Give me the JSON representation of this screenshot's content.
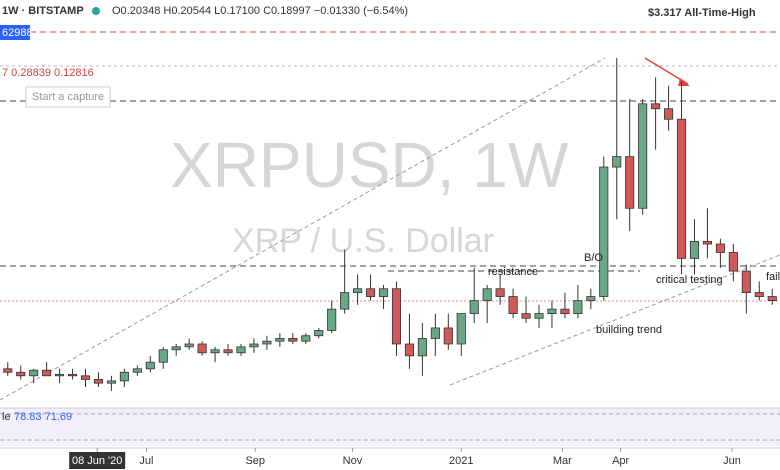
{
  "header": {
    "symbol": "1W · BITSTAMP",
    "ohlc": "O0.20348 H0.20544 L0.17100 C0.18997 −0.01330 (−6.54%)",
    "ath": "$3.317 All-Time-High",
    "capture": "Start a capture",
    "price_tag": "62988",
    "indicator_values": "7  0.28839  0.12816",
    "stoch_label": "le",
    "stoch_values": "78.83  71.69"
  },
  "watermark": {
    "symbol": "XRPUSD, 1W",
    "name": "XRP / U.S. Dollar"
  },
  "annotations": {
    "resistance": "resistance",
    "breakout": "B/O",
    "critical": "critical testing",
    "fail": "fail",
    "trend": "building trend"
  },
  "chart_data": {
    "type": "candlestick",
    "log": true,
    "ylim": [
      0.15,
      3.0
    ],
    "xlim": [
      -0.6,
      59.6
    ],
    "up_color": "#6aa784",
    "down_color": "#d05a5a",
    "open": [
      0.2,
      0.195,
      0.19,
      0.198,
      0.19,
      0.192,
      0.19,
      0.185,
      0.18,
      0.183,
      0.195,
      0.2,
      0.21,
      0.23,
      0.235,
      0.24,
      0.225,
      0.23,
      0.225,
      0.235,
      0.24,
      0.245,
      0.25,
      0.245,
      0.255,
      0.265,
      0.31,
      0.35,
      0.36,
      0.34,
      0.36,
      0.24,
      0.22,
      0.25,
      0.27,
      0.24,
      0.3,
      0.33,
      0.36,
      0.34,
      0.3,
      0.29,
      0.3,
      0.31,
      0.3,
      0.33,
      0.34,
      0.88,
      0.95,
      0.65,
      1.4,
      1.35,
      1.25,
      0.45,
      0.51,
      0.5,
      0.47,
      0.41,
      0.35,
      0.34
    ],
    "high": [
      0.21,
      0.205,
      0.2,
      0.21,
      0.2,
      0.2,
      0.2,
      0.195,
      0.19,
      0.2,
      0.205,
      0.22,
      0.235,
      0.24,
      0.25,
      0.245,
      0.235,
      0.24,
      0.24,
      0.25,
      0.255,
      0.26,
      0.26,
      0.26,
      0.27,
      0.33,
      0.48,
      0.4,
      0.4,
      0.37,
      0.38,
      0.3,
      0.28,
      0.3,
      0.3,
      0.3,
      0.42,
      0.37,
      0.4,
      0.36,
      0.34,
      0.32,
      0.33,
      0.35,
      0.37,
      0.36,
      0.95,
      1.96,
      1.45,
      1.45,
      1.7,
      1.6,
      1.65,
      0.6,
      0.65,
      0.52,
      0.5,
      0.43,
      0.38,
      0.36
    ],
    "low": [
      0.19,
      0.185,
      0.18,
      0.19,
      0.18,
      0.185,
      0.175,
      0.175,
      0.17,
      0.175,
      0.19,
      0.195,
      0.2,
      0.22,
      0.23,
      0.22,
      0.21,
      0.22,
      0.22,
      0.225,
      0.23,
      0.235,
      0.24,
      0.24,
      0.25,
      0.26,
      0.3,
      0.32,
      0.33,
      0.31,
      0.22,
      0.2,
      0.19,
      0.22,
      0.23,
      0.22,
      0.28,
      0.28,
      0.32,
      0.29,
      0.28,
      0.27,
      0.27,
      0.29,
      0.29,
      0.31,
      0.33,
      0.6,
      0.55,
      0.62,
      1.0,
      1.15,
      0.4,
      0.4,
      0.45,
      0.42,
      0.38,
      0.3,
      0.33,
      0.32
    ],
    "close": [
      0.195,
      0.19,
      0.198,
      0.19,
      0.192,
      0.19,
      0.185,
      0.18,
      0.183,
      0.195,
      0.2,
      0.21,
      0.23,
      0.235,
      0.24,
      0.225,
      0.23,
      0.225,
      0.235,
      0.24,
      0.245,
      0.25,
      0.245,
      0.255,
      0.265,
      0.31,
      0.35,
      0.36,
      0.34,
      0.36,
      0.24,
      0.22,
      0.25,
      0.27,
      0.24,
      0.3,
      0.33,
      0.36,
      0.34,
      0.3,
      0.29,
      0.3,
      0.31,
      0.3,
      0.33,
      0.34,
      0.88,
      0.95,
      0.65,
      1.4,
      1.35,
      1.25,
      0.45,
      0.51,
      0.5,
      0.47,
      0.41,
      0.35,
      0.34,
      0.33
    ],
    "xticks": [
      {
        "value": 6.9,
        "label": "08 Jun '20"
      },
      {
        "value": 10.7,
        "label": "Jul"
      },
      {
        "value": 19.1,
        "label": "Sep"
      },
      {
        "value": 26.6,
        "label": "Nov"
      },
      {
        "value": 35.0,
        "label": "2021"
      },
      {
        "value": 42.8,
        "label": "Mar"
      },
      {
        "value": 47.3,
        "label": "Apr"
      },
      {
        "value": 55.9,
        "label": "Jun"
      }
    ]
  }
}
